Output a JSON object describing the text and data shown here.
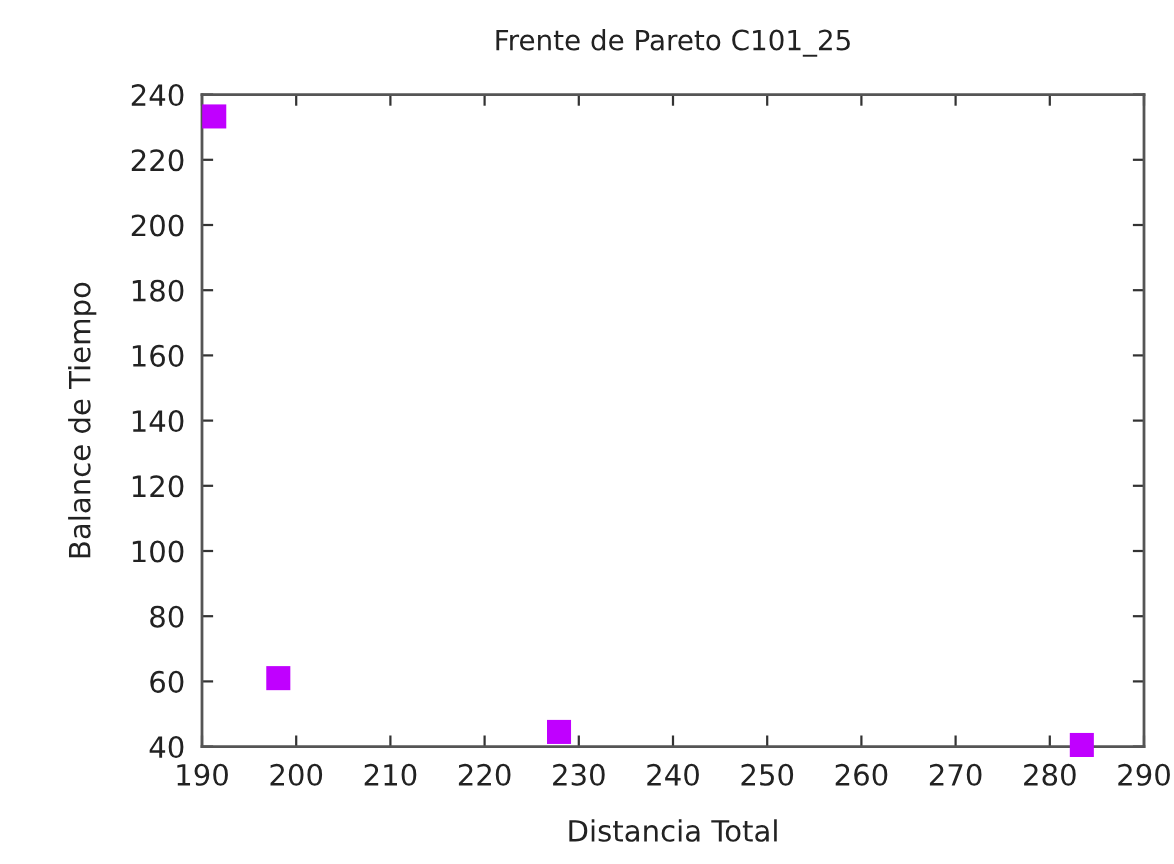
{
  "chart_data": {
    "type": "scatter",
    "title": "Frente de Pareto C101_25",
    "xlabel": "Distancia Total",
    "ylabel": "Balance de Tiempo",
    "series": [
      {
        "x": [
          191.3,
          198.1,
          227.9,
          283.4
        ],
        "values": [
          233.3,
          61,
          44.5,
          40.5
        ],
        "color": "#c000ff"
      }
    ],
    "xlim": [
      190,
      290
    ],
    "xticks": [
      190,
      200,
      210,
      220,
      230,
      240,
      250,
      260,
      270,
      280,
      290
    ],
    "ylim": [
      40,
      240
    ],
    "yticks": [
      40,
      60,
      80,
      100,
      120,
      140,
      160,
      180,
      200,
      220,
      240
    ],
    "marker": "square",
    "grid": false
  }
}
